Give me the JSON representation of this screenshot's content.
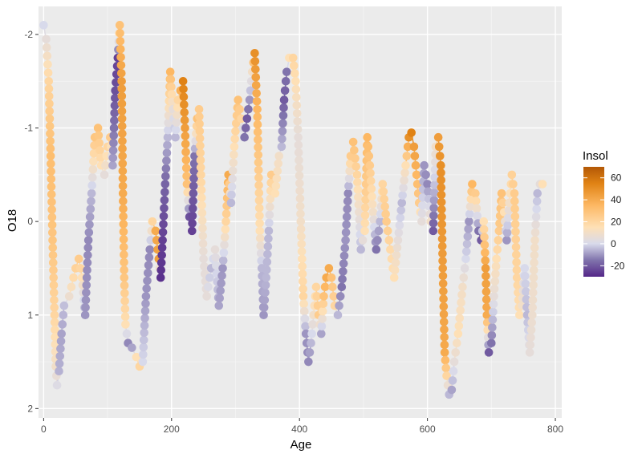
{
  "chart_data": {
    "type": "scatter",
    "title": "",
    "xlabel": "Age",
    "ylabel": "O18",
    "xlim": [
      -8,
      810
    ],
    "ylim": [
      2.1,
      -2.3
    ],
    "y_reversed": true,
    "x_ticks": [
      0,
      200,
      400,
      600,
      800
    ],
    "x_tick_labels": [
      "0",
      "200",
      "400",
      "600",
      "800"
    ],
    "y_ticks": [
      -2,
      -1,
      0,
      1,
      2
    ],
    "y_tick_labels": [
      "-2",
      "-1",
      "0",
      "1",
      "2"
    ],
    "grid": true,
    "legend": {
      "title": "Insol",
      "position": "right",
      "type": "colorbar",
      "range": [
        -30,
        70
      ],
      "ticks": [
        60,
        40,
        20,
        0,
        -20
      ],
      "tick_labels": [
        "60",
        "40",
        "20",
        "0",
        "-20"
      ],
      "color_stops": [
        {
          "value": -30,
          "color": "#542788"
        },
        {
          "value": -15,
          "color": "#8073ac"
        },
        {
          "value": 0,
          "color": "#d8daeb"
        },
        {
          "value": 15,
          "color": "#fee0b6"
        },
        {
          "value": 35,
          "color": "#fdb863"
        },
        {
          "value": 55,
          "color": "#e08214"
        },
        {
          "value": 70,
          "color": "#b35806"
        }
      ]
    },
    "series_points": [
      [
        0,
        -2.1,
        0
      ],
      [
        4,
        -1.95,
        5
      ],
      [
        8,
        -1.5,
        20
      ],
      [
        11,
        -0.7,
        32
      ],
      [
        14,
        0.2,
        28
      ],
      [
        17,
        1.0,
        20
      ],
      [
        19,
        1.55,
        10
      ],
      [
        21,
        1.75,
        2
      ],
      [
        24,
        1.6,
        -6
      ],
      [
        28,
        1.2,
        -8
      ],
      [
        32,
        0.9,
        -4
      ],
      [
        40,
        0.8,
        8
      ],
      [
        50,
        0.5,
        22
      ],
      [
        55,
        0.4,
        25
      ],
      [
        60,
        0.6,
        15
      ],
      [
        65,
        1.0,
        -10
      ],
      [
        70,
        0.2,
        -12
      ],
      [
        75,
        -0.3,
        -5
      ],
      [
        80,
        -0.9,
        28
      ],
      [
        85,
        -1.0,
        30
      ],
      [
        90,
        -0.6,
        15
      ],
      [
        95,
        -0.5,
        5
      ],
      [
        100,
        -0.8,
        20
      ],
      [
        104,
        -0.9,
        25
      ],
      [
        108,
        -0.6,
        -8
      ],
      [
        112,
        -1.4,
        -22
      ],
      [
        116,
        -1.75,
        -25
      ],
      [
        119,
        -2.1,
        30
      ],
      [
        122,
        -1.5,
        45
      ],
      [
        124,
        -0.3,
        40
      ],
      [
        126,
        0.6,
        28
      ],
      [
        128,
        1.1,
        15
      ],
      [
        132,
        1.3,
        -12
      ],
      [
        138,
        1.35,
        -8
      ],
      [
        145,
        1.45,
        15
      ],
      [
        150,
        1.55,
        20
      ],
      [
        155,
        1.5,
        0
      ],
      [
        160,
        0.8,
        -10
      ],
      [
        166,
        0.3,
        -12
      ],
      [
        170,
        0.0,
        20
      ],
      [
        175,
        0.1,
        40
      ],
      [
        180,
        0.4,
        45
      ],
      [
        183,
        0.6,
        -28
      ],
      [
        186,
        0.2,
        -25
      ],
      [
        190,
        -0.4,
        -18
      ],
      [
        194,
        -0.9,
        -5
      ],
      [
        198,
        -1.6,
        35
      ],
      [
        202,
        -1.2,
        5
      ],
      [
        206,
        -0.9,
        -5
      ],
      [
        210,
        -1.3,
        20
      ],
      [
        214,
        -1.4,
        38
      ],
      [
        218,
        -1.5,
        55
      ],
      [
        221,
        -1.0,
        45
      ],
      [
        224,
        -0.4,
        30
      ],
      [
        228,
        -0.05,
        -22
      ],
      [
        232,
        0.1,
        -25
      ],
      [
        236,
        -0.7,
        -15
      ],
      [
        240,
        -1.1,
        30
      ],
      [
        243,
        -1.2,
        25
      ],
      [
        246,
        -0.5,
        20
      ],
      [
        250,
        0.4,
        5
      ],
      [
        255,
        0.8,
        5
      ],
      [
        262,
        0.5,
        -5
      ],
      [
        268,
        0.3,
        5
      ],
      [
        274,
        0.9,
        -8
      ],
      [
        280,
        0.5,
        -10
      ],
      [
        285,
        0.0,
        20
      ],
      [
        289,
        -0.5,
        40
      ],
      [
        293,
        -0.2,
        -5
      ],
      [
        298,
        -0.8,
        15
      ],
      [
        304,
        -1.3,
        30
      ],
      [
        309,
        -1.1,
        20
      ],
      [
        314,
        -0.9,
        -15
      ],
      [
        318,
        -1.1,
        -20
      ],
      [
        322,
        -1.3,
        -10
      ],
      [
        326,
        -1.6,
        10
      ],
      [
        330,
        -1.8,
        50
      ],
      [
        334,
        -1.2,
        35
      ],
      [
        338,
        0.1,
        15
      ],
      [
        341,
        0.5,
        -5
      ],
      [
        344,
        1.0,
        -10
      ],
      [
        348,
        0.6,
        -5
      ],
      [
        352,
        0.1,
        -5
      ],
      [
        356,
        -0.5,
        25
      ],
      [
        362,
        -0.3,
        15
      ],
      [
        368,
        -0.7,
        10
      ],
      [
        372,
        -0.8,
        -5
      ],
      [
        376,
        -1.3,
        -20
      ],
      [
        380,
        -1.6,
        -15
      ],
      [
        384,
        -1.75,
        15
      ],
      [
        390,
        -1.75,
        20
      ],
      [
        394,
        -1.5,
        15
      ],
      [
        398,
        -0.9,
        5
      ],
      [
        402,
        0.0,
        10
      ],
      [
        406,
        0.8,
        20
      ],
      [
        410,
        1.2,
        -10
      ],
      [
        414,
        1.5,
        -12
      ],
      [
        418,
        1.3,
        -5
      ],
      [
        422,
        1.0,
        10
      ],
      [
        426,
        0.7,
        20
      ],
      [
        430,
        1.0,
        25
      ],
      [
        434,
        1.2,
        -8
      ],
      [
        438,
        0.8,
        30
      ],
      [
        442,
        0.6,
        40
      ],
      [
        446,
        0.5,
        40
      ],
      [
        450,
        0.6,
        30
      ],
      [
        455,
        0.9,
        20
      ],
      [
        460,
        1.0,
        -5
      ],
      [
        466,
        0.7,
        -15
      ],
      [
        472,
        0.2,
        -10
      ],
      [
        476,
        -0.3,
        -12
      ],
      [
        480,
        -0.7,
        25
      ],
      [
        484,
        -0.85,
        30
      ],
      [
        490,
        -0.5,
        20
      ],
      [
        496,
        0.3,
        -5
      ],
      [
        502,
        0.1,
        15
      ],
      [
        506,
        -0.9,
        35
      ],
      [
        510,
        -0.6,
        25
      ],
      [
        515,
        -0.1,
        10
      ],
      [
        520,
        0.3,
        -15
      ],
      [
        526,
        0.0,
        -5
      ],
      [
        530,
        -0.4,
        20
      ],
      [
        536,
        0.0,
        25
      ],
      [
        542,
        0.3,
        18
      ],
      [
        548,
        0.6,
        15
      ],
      [
        554,
        0.2,
        5
      ],
      [
        560,
        -0.2,
        -5
      ],
      [
        566,
        -0.6,
        15
      ],
      [
        571,
        -0.9,
        50
      ],
      [
        575,
        -0.95,
        55
      ],
      [
        579,
        -0.8,
        45
      ],
      [
        583,
        -0.5,
        35
      ],
      [
        587,
        -0.2,
        25
      ],
      [
        591,
        0.0,
        5
      ],
      [
        595,
        -0.6,
        -10
      ],
      [
        600,
        -0.4,
        -12
      ],
      [
        605,
        0.0,
        10
      ],
      [
        609,
        0.1,
        -20
      ],
      [
        613,
        -0.8,
        10
      ],
      [
        617,
        -0.9,
        45
      ],
      [
        621,
        -0.6,
        50
      ],
      [
        624,
        0.5,
        45
      ],
      [
        627,
        1.4,
        40
      ],
      [
        630,
        1.65,
        20
      ],
      [
        634,
        1.85,
        -5
      ],
      [
        638,
        1.8,
        -8
      ],
      [
        642,
        1.5,
        5
      ],
      [
        648,
        1.2,
        15
      ],
      [
        655,
        0.7,
        10
      ],
      [
        660,
        0.4,
        0
      ],
      [
        665,
        0.0,
        -10
      ],
      [
        670,
        -0.4,
        35
      ],
      [
        675,
        -0.3,
        25
      ],
      [
        680,
        0.1,
        -15
      ],
      [
        684,
        0.2,
        -20
      ],
      [
        688,
        0.0,
        15
      ],
      [
        691,
        0.5,
        45
      ],
      [
        693,
        1.0,
        40
      ],
      [
        696,
        1.4,
        -20
      ],
      [
        700,
        1.3,
        -15
      ],
      [
        704,
        0.8,
        5
      ],
      [
        708,
        0.4,
        15
      ],
      [
        712,
        0.1,
        25
      ],
      [
        716,
        -0.3,
        30
      ],
      [
        720,
        -0.1,
        15
      ],
      [
        724,
        0.2,
        -10
      ],
      [
        728,
        -0.2,
        10
      ],
      [
        732,
        -0.5,
        22
      ],
      [
        736,
        -0.3,
        25
      ],
      [
        740,
        0.6,
        20
      ],
      [
        744,
        1.0,
        15
      ],
      [
        748,
        0.9,
        10
      ],
      [
        752,
        0.5,
        0
      ],
      [
        756,
        1.0,
        -5
      ],
      [
        760,
        1.4,
        5
      ],
      [
        764,
        1.0,
        8
      ],
      [
        768,
        0.2,
        10
      ],
      [
        772,
        -0.3,
        -5
      ],
      [
        776,
        -0.4,
        5
      ],
      [
        780,
        -0.4,
        15
      ]
    ]
  }
}
